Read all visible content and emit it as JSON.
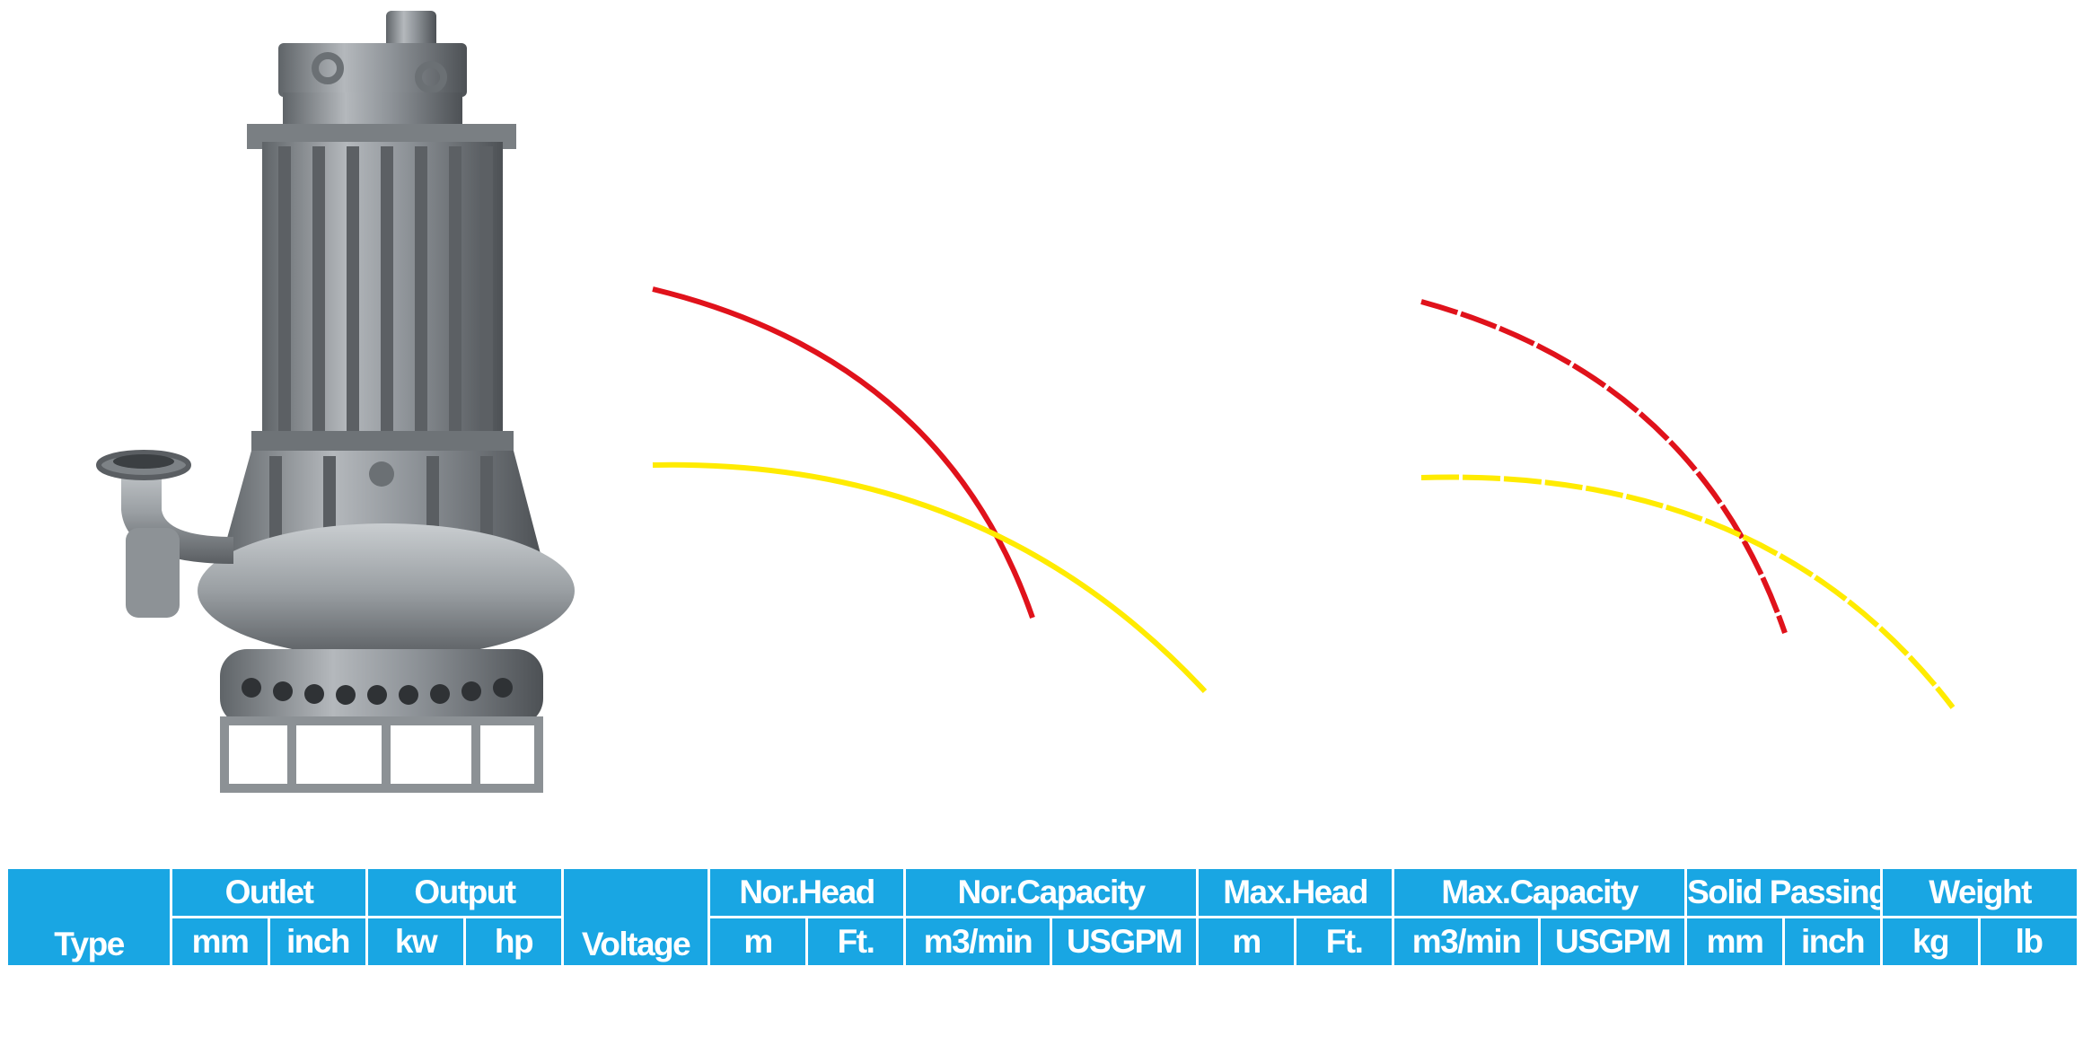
{
  "colors": {
    "header_bg": "#19a6e3",
    "header_text": "#ffffff",
    "curve_head": "#e0121b",
    "curve_efficiency": "#ffeb00",
    "pump_body": "#8e9398"
  },
  "image": {
    "name": "submersible-pump-photo"
  },
  "curves": [
    {
      "name": "curve-pair-left",
      "style": "solid"
    },
    {
      "name": "curve-pair-right",
      "style": "dashed"
    }
  ],
  "table": {
    "type_label": "Type",
    "voltage_label": "Voltage",
    "groups": [
      {
        "label": "Outlet",
        "units": [
          "mm",
          "inch"
        ]
      },
      {
        "label": "Output",
        "units": [
          "kw",
          "hp"
        ]
      },
      {
        "label": "Nor.Head",
        "units": [
          "m",
          "Ft."
        ]
      },
      {
        "label": "Nor.Capacity",
        "units": [
          "m3/min",
          "USGPM"
        ]
      },
      {
        "label": "Max.Head",
        "units": [
          "m",
          "Ft."
        ]
      },
      {
        "label": "Max.Capacity",
        "units": [
          "m3/min",
          "USGPM"
        ]
      },
      {
        "label": "Solid Passing",
        "units": [
          "mm",
          "inch"
        ]
      },
      {
        "label": "Weight",
        "units": [
          "kg",
          "lb"
        ]
      }
    ]
  }
}
